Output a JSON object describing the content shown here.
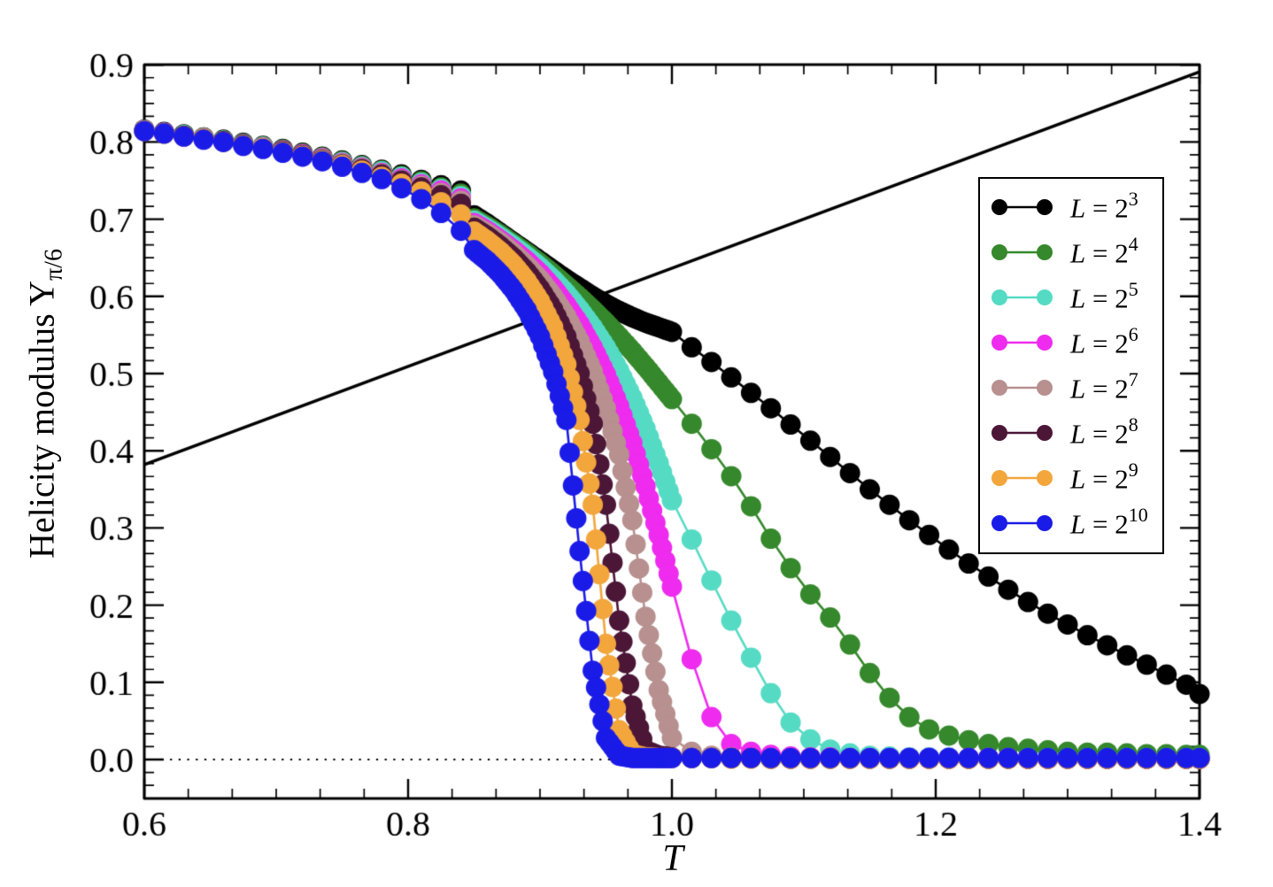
{
  "figure": {
    "xlabel": "T",
    "ylabel_text": "Helicity modulus Y",
    "ylabel_subscript": "π/6"
  },
  "chart_data": {
    "type": "line",
    "title": "",
    "xlabel": "T",
    "ylabel": "Helicity modulus Y_{π/6}",
    "xlim": [
      0.6,
      1.4
    ],
    "ylim": [
      -0.05,
      0.9
    ],
    "grid": false,
    "legend_position": "upper right",
    "marker": "circle",
    "x_major_ticks": [
      0.6,
      0.8,
      1.0,
      1.2,
      1.4
    ],
    "x_tick_labels": [
      "0.6",
      "0.8",
      "1.0",
      "1.2",
      "1.4"
    ],
    "x_minor_divisions": 6,
    "y_major_ticks": [
      0.0,
      0.1,
      0.2,
      0.3,
      0.4,
      0.5,
      0.6,
      0.7,
      0.8,
      0.9
    ],
    "y_tick_labels": [
      "0.0",
      "0.1",
      "0.2",
      "0.3",
      "0.4",
      "0.5",
      "0.6",
      "0.7",
      "0.8",
      "0.9"
    ],
    "y_minor_divisions": 6,
    "dense_window": [
      0.85,
      1.0
    ],
    "t_grid": [
      0.6,
      0.615,
      0.63,
      0.645,
      0.66,
      0.675,
      0.69,
      0.705,
      0.72,
      0.735,
      0.75,
      0.765,
      0.78,
      0.795,
      0.81,
      0.825,
      0.84,
      0.85,
      0.86,
      0.87,
      0.88,
      0.89,
      0.9,
      0.91,
      0.92,
      0.93,
      0.94,
      0.95,
      0.96,
      0.97,
      0.98,
      0.99,
      1.0,
      1.015,
      1.03,
      1.045,
      1.06,
      1.075,
      1.09,
      1.105,
      1.12,
      1.135,
      1.15,
      1.165,
      1.18,
      1.195,
      1.21,
      1.225,
      1.24,
      1.255,
      1.27,
      1.285,
      1.3,
      1.315,
      1.33,
      1.345,
      1.36,
      1.375,
      1.39,
      1.4
    ],
    "series": [
      {
        "name": "L = 2^3",
        "label_var": "L",
        "label_eq": " = 2",
        "label_exp": "3",
        "color": "#000000",
        "values": [
          0.816,
          0.813,
          0.81,
          0.806,
          0.803,
          0.799,
          0.795,
          0.791,
          0.786,
          0.781,
          0.776,
          0.77,
          0.764,
          0.758,
          0.751,
          0.744,
          0.737,
          0.705,
          0.694,
          0.682,
          0.67,
          0.658,
          0.646,
          0.634,
          0.622,
          0.611,
          0.6,
          0.59,
          0.581,
          0.573,
          0.566,
          0.56,
          0.554,
          0.534,
          0.515,
          0.495,
          0.475,
          0.455,
          0.434,
          0.413,
          0.392,
          0.371,
          0.35,
          0.33,
          0.31,
          0.291,
          0.272,
          0.254,
          0.237,
          0.22,
          0.204,
          0.189,
          0.175,
          0.161,
          0.148,
          0.135,
          0.123,
          0.11,
          0.097,
          0.085
        ]
      },
      {
        "name": "L = 2^4",
        "label_var": "L",
        "label_eq": " = 2",
        "label_exp": "4",
        "color": "#35882B",
        "values": [
          0.815,
          0.812,
          0.809,
          0.806,
          0.802,
          0.798,
          0.794,
          0.79,
          0.785,
          0.78,
          0.775,
          0.769,
          0.763,
          0.756,
          0.749,
          0.741,
          0.733,
          0.701,
          0.691,
          0.68,
          0.668,
          0.656,
          0.643,
          0.629,
          0.614,
          0.599,
          0.583,
          0.566,
          0.548,
          0.529,
          0.509,
          0.488,
          0.467,
          0.435,
          0.402,
          0.367,
          0.328,
          0.286,
          0.248,
          0.214,
          0.184,
          0.149,
          0.112,
          0.08,
          0.055,
          0.039,
          0.031,
          0.025,
          0.02,
          0.016,
          0.014,
          0.012,
          0.01,
          0.009,
          0.009,
          0.008,
          0.007,
          0.007,
          0.006,
          0.006
        ]
      },
      {
        "name": "L = 2^5",
        "label_var": "L",
        "label_eq": " = 2",
        "label_exp": "5",
        "color": "#55DBC4",
        "values": [
          0.815,
          0.812,
          0.809,
          0.805,
          0.802,
          0.798,
          0.794,
          0.789,
          0.784,
          0.779,
          0.774,
          0.768,
          0.762,
          0.755,
          0.747,
          0.739,
          0.73,
          0.698,
          0.688,
          0.677,
          0.665,
          0.652,
          0.638,
          0.622,
          0.604,
          0.583,
          0.56,
          0.534,
          0.504,
          0.469,
          0.429,
          0.384,
          0.336,
          0.285,
          0.232,
          0.18,
          0.132,
          0.086,
          0.048,
          0.026,
          0.013,
          0.008,
          0.005,
          0.004,
          0.003,
          0.003,
          0.003,
          0.002,
          0.002,
          0.002,
          0.002,
          0.002,
          0.002,
          0.002,
          0.002,
          0.002,
          0.002,
          0.002,
          0.002,
          0.002
        ]
      },
      {
        "name": "L = 2^6",
        "label_var": "L",
        "label_eq": " = 2",
        "label_exp": "6",
        "color": "#EE2BEE",
        "values": [
          0.815,
          0.812,
          0.808,
          0.805,
          0.801,
          0.797,
          0.793,
          0.789,
          0.784,
          0.779,
          0.773,
          0.767,
          0.76,
          0.753,
          0.745,
          0.737,
          0.727,
          0.695,
          0.685,
          0.673,
          0.66,
          0.646,
          0.63,
          0.611,
          0.589,
          0.564,
          0.534,
          0.499,
          0.458,
          0.41,
          0.354,
          0.291,
          0.224,
          0.13,
          0.055,
          0.02,
          0.01,
          0.006,
          0.004,
          0.003,
          0.003,
          0.002,
          0.002,
          0.002,
          0.002,
          0.002,
          0.002,
          0.002,
          0.002,
          0.002,
          0.001,
          0.001,
          0.001,
          0.001,
          0.001,
          0.001,
          0.001,
          0.001,
          0.001,
          0.001
        ]
      },
      {
        "name": "L = 2^7",
        "label_var": "L",
        "label_eq": " = 2",
        "label_exp": "7",
        "color": "#B7908F",
        "values": [
          0.815,
          0.811,
          0.808,
          0.805,
          0.801,
          0.797,
          0.793,
          0.788,
          0.783,
          0.778,
          0.772,
          0.766,
          0.759,
          0.751,
          0.743,
          0.734,
          0.724,
          0.692,
          0.682,
          0.67,
          0.656,
          0.64,
          0.622,
          0.6,
          0.574,
          0.542,
          0.503,
          0.455,
          0.395,
          0.31,
          0.185,
          0.09,
          0.028,
          0.01,
          0.005,
          0.003,
          0.002,
          0.002,
          0.002,
          0.002,
          0.002,
          0.002,
          0.002,
          0.001,
          0.001,
          0.001,
          0.001,
          0.001,
          0.001,
          0.001,
          0.001,
          0.001,
          0.001,
          0.001,
          0.001,
          0.001,
          0.001,
          0.001,
          0.001,
          0.001
        ]
      },
      {
        "name": "L = 2^8",
        "label_var": "L",
        "label_eq": " = 2",
        "label_exp": "8",
        "color": "#4C1637",
        "values": [
          0.814,
          0.811,
          0.808,
          0.804,
          0.801,
          0.797,
          0.792,
          0.788,
          0.783,
          0.777,
          0.771,
          0.765,
          0.758,
          0.75,
          0.741,
          0.731,
          0.72,
          0.689,
          0.678,
          0.665,
          0.65,
          0.632,
          0.61,
          0.583,
          0.548,
          0.5,
          0.435,
          0.33,
          0.18,
          0.07,
          0.012,
          0.005,
          0.003,
          0.002,
          0.002,
          0.002,
          0.002,
          0.001,
          0.001,
          0.001,
          0.001,
          0.001,
          0.001,
          0.001,
          0.001,
          0.001,
          0.001,
          0.001,
          0.001,
          0.001,
          0.001,
          0.001,
          0.001,
          0.001,
          0.001,
          0.001,
          0.001,
          0.001,
          0.001,
          0.001
        ]
      },
      {
        "name": "L = 2^9",
        "label_var": "L",
        "label_eq": " = 2",
        "label_exp": "9",
        "color": "#F2A63C",
        "values": [
          0.814,
          0.811,
          0.807,
          0.804,
          0.8,
          0.796,
          0.792,
          0.787,
          0.782,
          0.776,
          0.77,
          0.763,
          0.755,
          0.746,
          0.736,
          0.722,
          0.706,
          0.684,
          0.672,
          0.658,
          0.641,
          0.62,
          0.594,
          0.56,
          0.512,
          0.44,
          0.33,
          0.15,
          0.038,
          0.007,
          0.003,
          0.002,
          0.002,
          0.002,
          0.002,
          0.001,
          0.001,
          0.001,
          0.001,
          0.001,
          0.001,
          0.001,
          0.001,
          0.001,
          0.001,
          0.001,
          0.001,
          0.001,
          0.001,
          0.001,
          0.001,
          0.001,
          0.001,
          0.001,
          0.001,
          0.001,
          0.001,
          0.001,
          0.001,
          0.001
        ]
      },
      {
        "name": "L = 2^10",
        "label_var": "L",
        "label_eq": " = 2",
        "label_exp": "10",
        "color": "#1B1BE8",
        "values": [
          0.814,
          0.811,
          0.807,
          0.803,
          0.8,
          0.795,
          0.791,
          0.786,
          0.781,
          0.775,
          0.768,
          0.76,
          0.752,
          0.74,
          0.726,
          0.708,
          0.685,
          0.66,
          0.646,
          0.629,
          0.608,
          0.582,
          0.548,
          0.502,
          0.44,
          0.27,
          0.115,
          0.028,
          0.005,
          0.002,
          0.002,
          0.002,
          0.002,
          0.002,
          0.002,
          0.002,
          0.002,
          0.002,
          0.002,
          0.002,
          0.002,
          0.002,
          0.002,
          0.002,
          0.002,
          0.002,
          0.002,
          0.002,
          0.002,
          0.002,
          0.002,
          0.002,
          0.002,
          0.002,
          0.002,
          0.002,
          0.002,
          0.002,
          0.002,
          0.002
        ]
      }
    ],
    "reference_lines": [
      {
        "name": "solid-diagonal-line",
        "x": [
          0.6,
          1.4
        ],
        "y": [
          0.382,
          0.891
        ],
        "color": "#000000",
        "style": "solid"
      },
      {
        "name": "dotted-zero-line",
        "x": [
          0.6,
          1.4
        ],
        "y": [
          0.0,
          0.0
        ],
        "color": "#000000",
        "style": "dotted"
      }
    ]
  }
}
